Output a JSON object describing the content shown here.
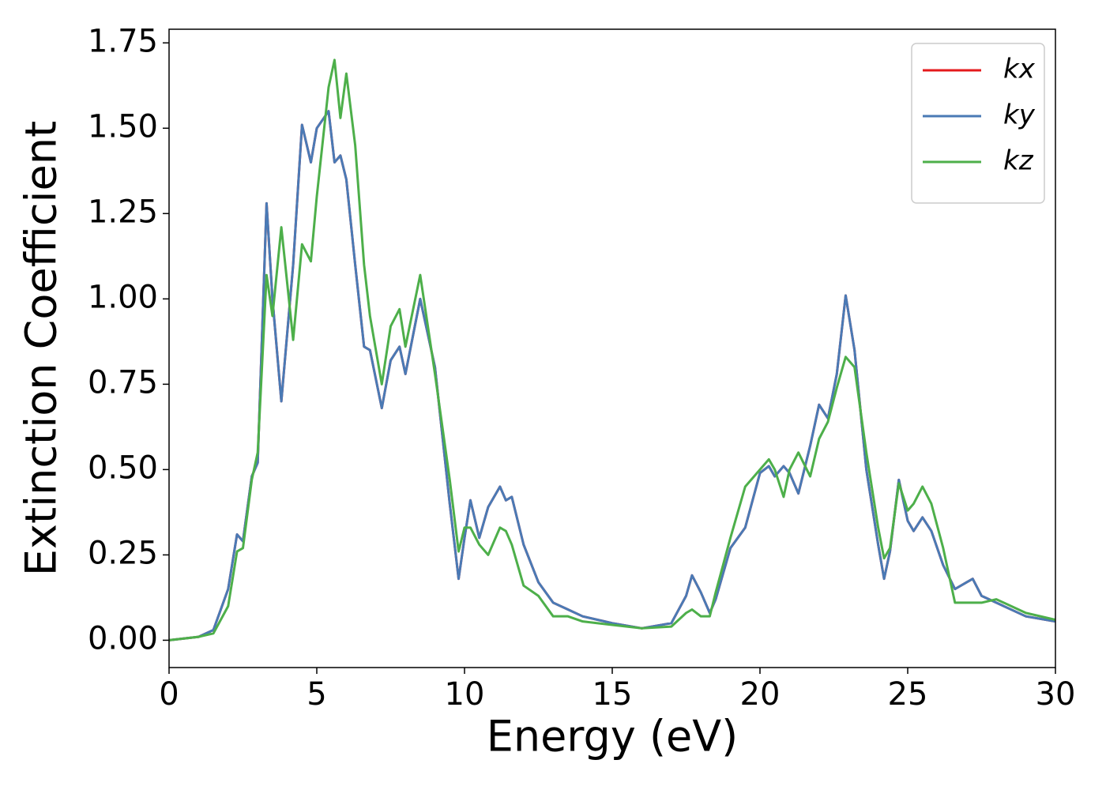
{
  "chart_data": {
    "type": "line",
    "x_label": "Energy (eV)",
    "y_label": "Extinction Coefficient",
    "x": [
      0,
      1,
      1.5,
      2,
      2.3,
      2.5,
      2.8,
      3,
      3.3,
      3.5,
      3.8,
      4.2,
      4.5,
      4.8,
      5,
      5.4,
      5.6,
      5.8,
      6,
      6.3,
      6.6,
      6.8,
      7.2,
      7.5,
      7.8,
      8,
      8.5,
      9,
      9.5,
      9.8,
      10,
      10.2,
      10.5,
      10.8,
      11.2,
      11.4,
      11.6,
      12,
      12.5,
      13,
      13.5,
      14,
      15,
      16,
      17,
      17.5,
      17.7,
      18,
      18.3,
      18.5,
      19,
      19.5,
      20,
      20.3,
      20.5,
      20.8,
      21,
      21.3,
      21.7,
      22,
      22.3,
      22.6,
      22.9,
      23.2,
      23.6,
      24,
      24.2,
      24.4,
      24.7,
      25,
      25.2,
      25.5,
      25.8,
      26.2,
      26.6,
      27,
      27.2,
      27.5,
      28,
      29,
      30
    ],
    "series": [
      {
        "name": "kx",
        "color": "#e41a1c",
        "values": [
          0,
          0.01,
          0.03,
          0.15,
          0.31,
          0.29,
          0.48,
          0.52,
          1.28,
          1.0,
          0.7,
          1.1,
          1.51,
          1.4,
          1.5,
          1.55,
          1.4,
          1.42,
          1.35,
          1.1,
          0.86,
          0.85,
          0.68,
          0.82,
          0.86,
          0.78,
          1.0,
          0.8,
          0.4,
          0.18,
          0.3,
          0.41,
          0.3,
          0.39,
          0.45,
          0.41,
          0.42,
          0.28,
          0.17,
          0.11,
          0.09,
          0.07,
          0.05,
          0.035,
          0.05,
          0.13,
          0.19,
          0.14,
          0.08,
          0.12,
          0.27,
          0.33,
          0.49,
          0.51,
          0.48,
          0.51,
          0.49,
          0.43,
          0.57,
          0.69,
          0.65,
          0.78,
          1.01,
          0.85,
          0.5,
          0.28,
          0.18,
          0.26,
          0.47,
          0.35,
          0.32,
          0.36,
          0.32,
          0.22,
          0.15,
          0.17,
          0.18,
          0.13,
          0.11,
          0.07,
          0.055
        ]
      },
      {
        "name": "ky",
        "color": "#4a7ab5",
        "values": [
          0,
          0.01,
          0.03,
          0.15,
          0.31,
          0.29,
          0.48,
          0.52,
          1.28,
          1.0,
          0.7,
          1.1,
          1.51,
          1.4,
          1.5,
          1.55,
          1.4,
          1.42,
          1.35,
          1.1,
          0.86,
          0.85,
          0.68,
          0.82,
          0.86,
          0.78,
          1.0,
          0.8,
          0.4,
          0.18,
          0.3,
          0.41,
          0.3,
          0.39,
          0.45,
          0.41,
          0.42,
          0.28,
          0.17,
          0.11,
          0.09,
          0.07,
          0.05,
          0.035,
          0.05,
          0.13,
          0.19,
          0.14,
          0.08,
          0.12,
          0.27,
          0.33,
          0.49,
          0.51,
          0.48,
          0.51,
          0.49,
          0.43,
          0.57,
          0.69,
          0.65,
          0.78,
          1.01,
          0.85,
          0.5,
          0.28,
          0.18,
          0.26,
          0.47,
          0.35,
          0.32,
          0.36,
          0.32,
          0.22,
          0.15,
          0.17,
          0.18,
          0.13,
          0.11,
          0.07,
          0.055
        ]
      },
      {
        "name": "kz",
        "color": "#4daf4a",
        "values": [
          0,
          0.01,
          0.02,
          0.1,
          0.26,
          0.27,
          0.47,
          0.55,
          1.07,
          0.95,
          1.21,
          0.88,
          1.16,
          1.11,
          1.3,
          1.62,
          1.7,
          1.53,
          1.66,
          1.45,
          1.1,
          0.95,
          0.75,
          0.92,
          0.97,
          0.86,
          1.07,
          0.78,
          0.47,
          0.26,
          0.33,
          0.33,
          0.28,
          0.25,
          0.33,
          0.32,
          0.28,
          0.16,
          0.13,
          0.07,
          0.07,
          0.055,
          0.045,
          0.035,
          0.04,
          0.08,
          0.09,
          0.07,
          0.07,
          0.14,
          0.3,
          0.45,
          0.5,
          0.53,
          0.5,
          0.42,
          0.5,
          0.55,
          0.48,
          0.59,
          0.64,
          0.74,
          0.83,
          0.8,
          0.55,
          0.33,
          0.24,
          0.27,
          0.46,
          0.38,
          0.4,
          0.45,
          0.4,
          0.27,
          0.11,
          0.11,
          0.11,
          0.11,
          0.12,
          0.08,
          0.06
        ]
      }
    ],
    "xlim": [
      0,
      30
    ],
    "xticks": [
      0,
      5,
      10,
      15,
      20,
      25,
      30
    ],
    "ylim": [
      -0.08,
      1.79
    ],
    "yticks": [
      {
        "value": 0,
        "label": "0.00"
      },
      {
        "value": 0.25,
        "label": "0.25"
      },
      {
        "value": 0.5,
        "label": "0.50"
      },
      {
        "value": 0.75,
        "label": "0.75"
      },
      {
        "value": 1,
        "label": "1.00"
      },
      {
        "value": 1.25,
        "label": "1.25"
      },
      {
        "value": 1.5,
        "label": "1.50"
      },
      {
        "value": 1.75,
        "label": "1.75"
      }
    ],
    "grid": false,
    "legend": "upper right"
  }
}
